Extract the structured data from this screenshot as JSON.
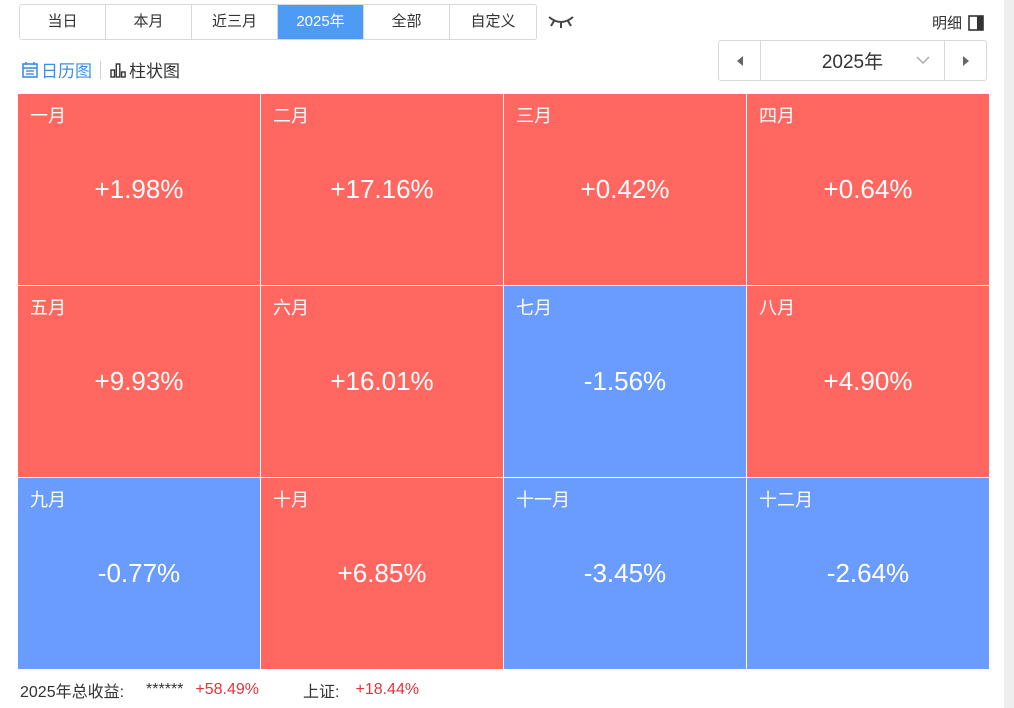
{
  "range_tabs": [
    {
      "label": "当日"
    },
    {
      "label": "本月"
    },
    {
      "label": "近三月"
    },
    {
      "label": "2025年"
    },
    {
      "label": "全部"
    },
    {
      "label": "自定义"
    }
  ],
  "active_range_tab": "2025年",
  "detail_label": "明细",
  "views": {
    "calendar_label": "日历图",
    "bar_label": "柱状图",
    "active": "calendar"
  },
  "year_selector": {
    "value": "2025年"
  },
  "colors": {
    "positive": "#ff6760",
    "negative": "#6a9bff",
    "accent": "#4d9bf5",
    "gain_text": "#e5333c"
  },
  "months": [
    {
      "name": "一月",
      "value": "+1.98%",
      "trend": "up"
    },
    {
      "name": "二月",
      "value": "+17.16%",
      "trend": "up"
    },
    {
      "name": "三月",
      "value": "+0.42%",
      "trend": "up"
    },
    {
      "name": "四月",
      "value": "+0.64%",
      "trend": "up"
    },
    {
      "name": "五月",
      "value": "+9.93%",
      "trend": "up"
    },
    {
      "name": "六月",
      "value": "+16.01%",
      "trend": "up"
    },
    {
      "name": "七月",
      "value": "-1.56%",
      "trend": "down"
    },
    {
      "name": "八月",
      "value": "+4.90%",
      "trend": "up"
    },
    {
      "name": "九月",
      "value": "-0.77%",
      "trend": "down"
    },
    {
      "name": "十月",
      "value": "+6.85%",
      "trend": "up"
    },
    {
      "name": "十一月",
      "value": "-3.45%",
      "trend": "down"
    },
    {
      "name": "十二月",
      "value": "-2.64%",
      "trend": "down"
    }
  ],
  "summary": {
    "total_label": "2025年总收益:",
    "masked_amount": "******",
    "total_return": "+58.49%",
    "benchmark_label": "上证:",
    "benchmark_return": "+18.44%"
  }
}
